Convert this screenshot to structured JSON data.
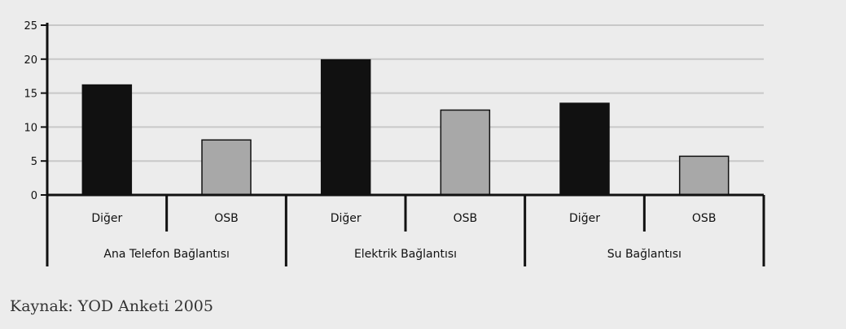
{
  "chart_data": {
    "type": "bar",
    "yticks": [
      "0",
      "5",
      "10",
      "15",
      "20",
      "25"
    ],
    "ylim": [
      0,
      25
    ],
    "grid": true,
    "groups": [
      {
        "label": "Ana Telefon Bağlantısı",
        "bars": [
          {
            "category": "Diğer",
            "value": 16.2,
            "color": "#111111"
          },
          {
            "category": "OSB",
            "value": 8.1,
            "color": "#a8a8a8"
          }
        ]
      },
      {
        "label": "Elektrik Bağlantısı",
        "bars": [
          {
            "category": "Diğer",
            "value": 19.9,
            "color": "#111111"
          },
          {
            "category": "OSB",
            "value": 12.5,
            "color": "#a8a8a8"
          }
        ]
      },
      {
        "label": "Su Bağlantısı",
        "bars": [
          {
            "category": "Diğer",
            "value": 13.5,
            "color": "#111111"
          },
          {
            "category": "OSB",
            "value": 5.7,
            "color": "#a8a8a8"
          }
        ]
      }
    ]
  },
  "source": "Kaynak: YOD Anketi 2005"
}
